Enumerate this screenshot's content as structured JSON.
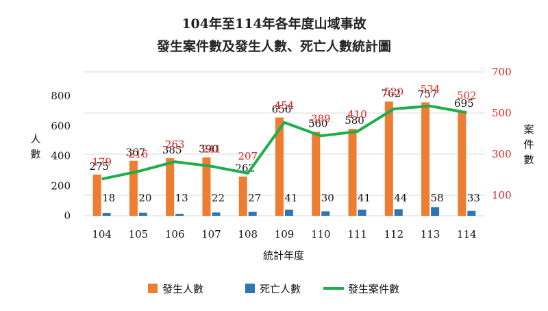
{
  "chart_data": {
    "type": "bar",
    "title_lines": [
      "104年至114年各年度山域事故",
      "發生案件數及發生人數、死亡人數統計圖"
    ],
    "xlabel": "統計年度",
    "ylabel_left": "人數",
    "ylabel_right": "案件數",
    "categories": [
      "104",
      "105",
      "106",
      "107",
      "108",
      "109",
      "110",
      "111",
      "112",
      "113",
      "114"
    ],
    "left_axis": {
      "ylim": [
        0,
        800
      ],
      "ticks": [
        "0",
        "200",
        "400",
        "600",
        "800"
      ]
    },
    "right_axis": {
      "ylim": [
        0,
        700
      ],
      "ticks": [
        "100",
        "300",
        "500",
        "700"
      ]
    },
    "grid": true,
    "legend_position": "bottom",
    "series": [
      {
        "name": "發生人數",
        "kind": "bar",
        "axis": "left",
        "color": "#ed7d31",
        "values": [
          275,
          367,
          385,
          390,
          262,
          656,
          560,
          580,
          762,
          757,
          695
        ]
      },
      {
        "name": "死亡人數",
        "kind": "bar",
        "axis": "left",
        "color": "#2e75b6",
        "values": [
          18,
          20,
          13,
          22,
          27,
          41,
          30,
          41,
          44,
          58,
          33
        ]
      },
      {
        "name": "發生案件數",
        "kind": "line",
        "axis": "right",
        "color": "#1fad4b",
        "values": [
          179,
          216,
          263,
          241,
          207,
          454,
          389,
          410,
          520,
          534,
          502
        ]
      }
    ]
  }
}
